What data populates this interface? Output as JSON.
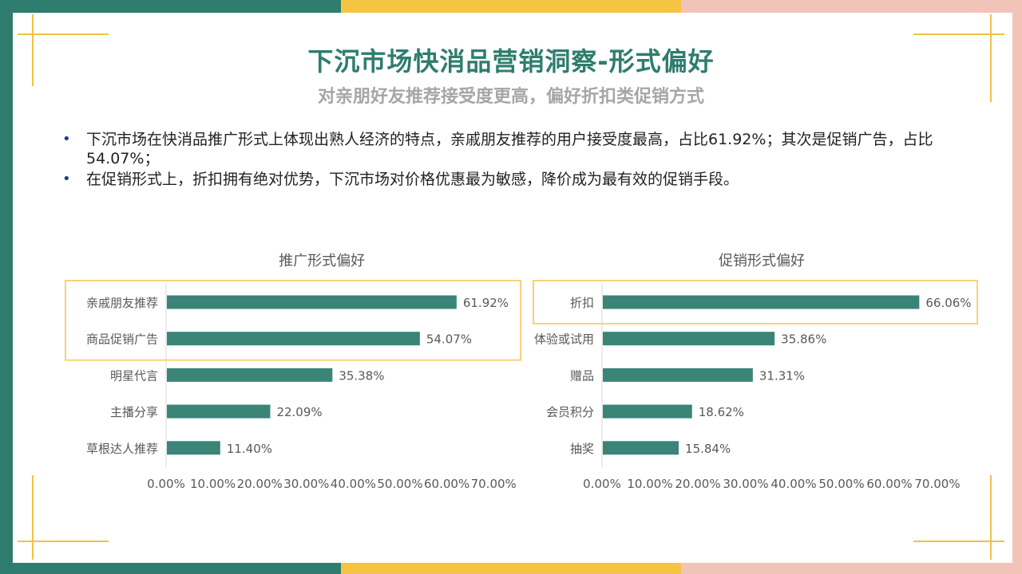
{
  "page": {
    "title": "下沉市场快消品营销洞察-形式偏好",
    "subtitle": "对亲朋好友推荐接受度更高，偏好折扣类促销方式",
    "bullets": [
      "下沉市场在快消品推广形式上体现出熟人经济的特点，亲戚朋友推荐的用户接受度最高，占比61.92%；其次是促销广告，占比54.07%；",
      "在促销形式上，折扣拥有绝对优势，下沉市场对价格优惠最为敏感，降价成为最有效的促销手段。"
    ],
    "bullet_icon": "bullet-dot",
    "colors": {
      "title": "#2e7d6e",
      "bar": "#3a8478",
      "frame_green": "#2e7d6e",
      "frame_yellow": "#f5c443",
      "frame_pink": "#f2c4b8",
      "highlight": "#f5d27a"
    }
  },
  "chart_data": [
    {
      "type": "bar",
      "orientation": "horizontal",
      "title": "推广形式偏好",
      "categories": [
        "亲戚朋友推荐",
        "商品促销广告",
        "明星代言",
        "主播分享",
        "草根达人推荐"
      ],
      "values": [
        61.92,
        54.07,
        35.38,
        22.09,
        11.4
      ],
      "value_labels": [
        "61.92%",
        "54.07%",
        "35.38%",
        "22.09%",
        "11.40%"
      ],
      "xlim": [
        0,
        70
      ],
      "xticks": [
        "0.00%",
        "10.00%",
        "20.00%",
        "30.00%",
        "40.00%",
        "50.00%",
        "60.00%",
        "70.00%"
      ],
      "highlighted_categories": [
        "亲戚朋友推荐",
        "商品促销广告"
      ],
      "grid": false,
      "legend": "none"
    },
    {
      "type": "bar",
      "orientation": "horizontal",
      "title": "促销形式偏好",
      "categories": [
        "折扣",
        "体验或试用",
        "赠品",
        "会员积分",
        "抽奖"
      ],
      "values": [
        66.06,
        35.86,
        31.31,
        18.62,
        15.84
      ],
      "value_labels": [
        "66.06%",
        "35.86%",
        "31.31%",
        "18.62%",
        "15.84%"
      ],
      "xlim": [
        0,
        70
      ],
      "xticks": [
        "0.00%",
        "10.00%",
        "20.00%",
        "30.00%",
        "40.00%",
        "50.00%",
        "60.00%",
        "70.00%"
      ],
      "highlighted_categories": [
        "折扣"
      ],
      "grid": false,
      "legend": "none"
    }
  ]
}
